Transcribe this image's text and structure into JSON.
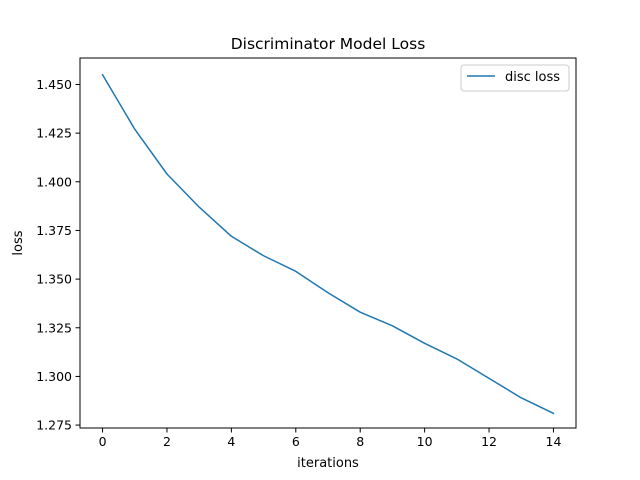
{
  "chart_data": {
    "type": "line",
    "title": "Discriminator Model Loss",
    "xlabel": "iterations",
    "ylabel": "loss",
    "xlim": [
      -0.7,
      14.7
    ],
    "ylim": [
      1.2735,
      1.4636
    ],
    "xticks": [
      0,
      2,
      4,
      6,
      8,
      10,
      12,
      14
    ],
    "yticks": [
      1.275,
      1.3,
      1.325,
      1.35,
      1.375,
      1.4,
      1.425,
      1.45
    ],
    "ytick_labels": [
      "1.275",
      "1.300",
      "1.325",
      "1.350",
      "1.375",
      "1.400",
      "1.425",
      "1.450"
    ],
    "grid": false,
    "legend_position": "top-right",
    "x": [
      0,
      1,
      2,
      3,
      4,
      5,
      6,
      7,
      8,
      9,
      10,
      11,
      12,
      13,
      14
    ],
    "series": [
      {
        "name": "disc loss",
        "color": "#1f77b4",
        "values": [
          1.455,
          1.427,
          1.404,
          1.387,
          1.372,
          1.362,
          1.354,
          1.343,
          1.333,
          1.326,
          1.317,
          1.309,
          1.299,
          1.289,
          1.281
        ]
      }
    ]
  }
}
